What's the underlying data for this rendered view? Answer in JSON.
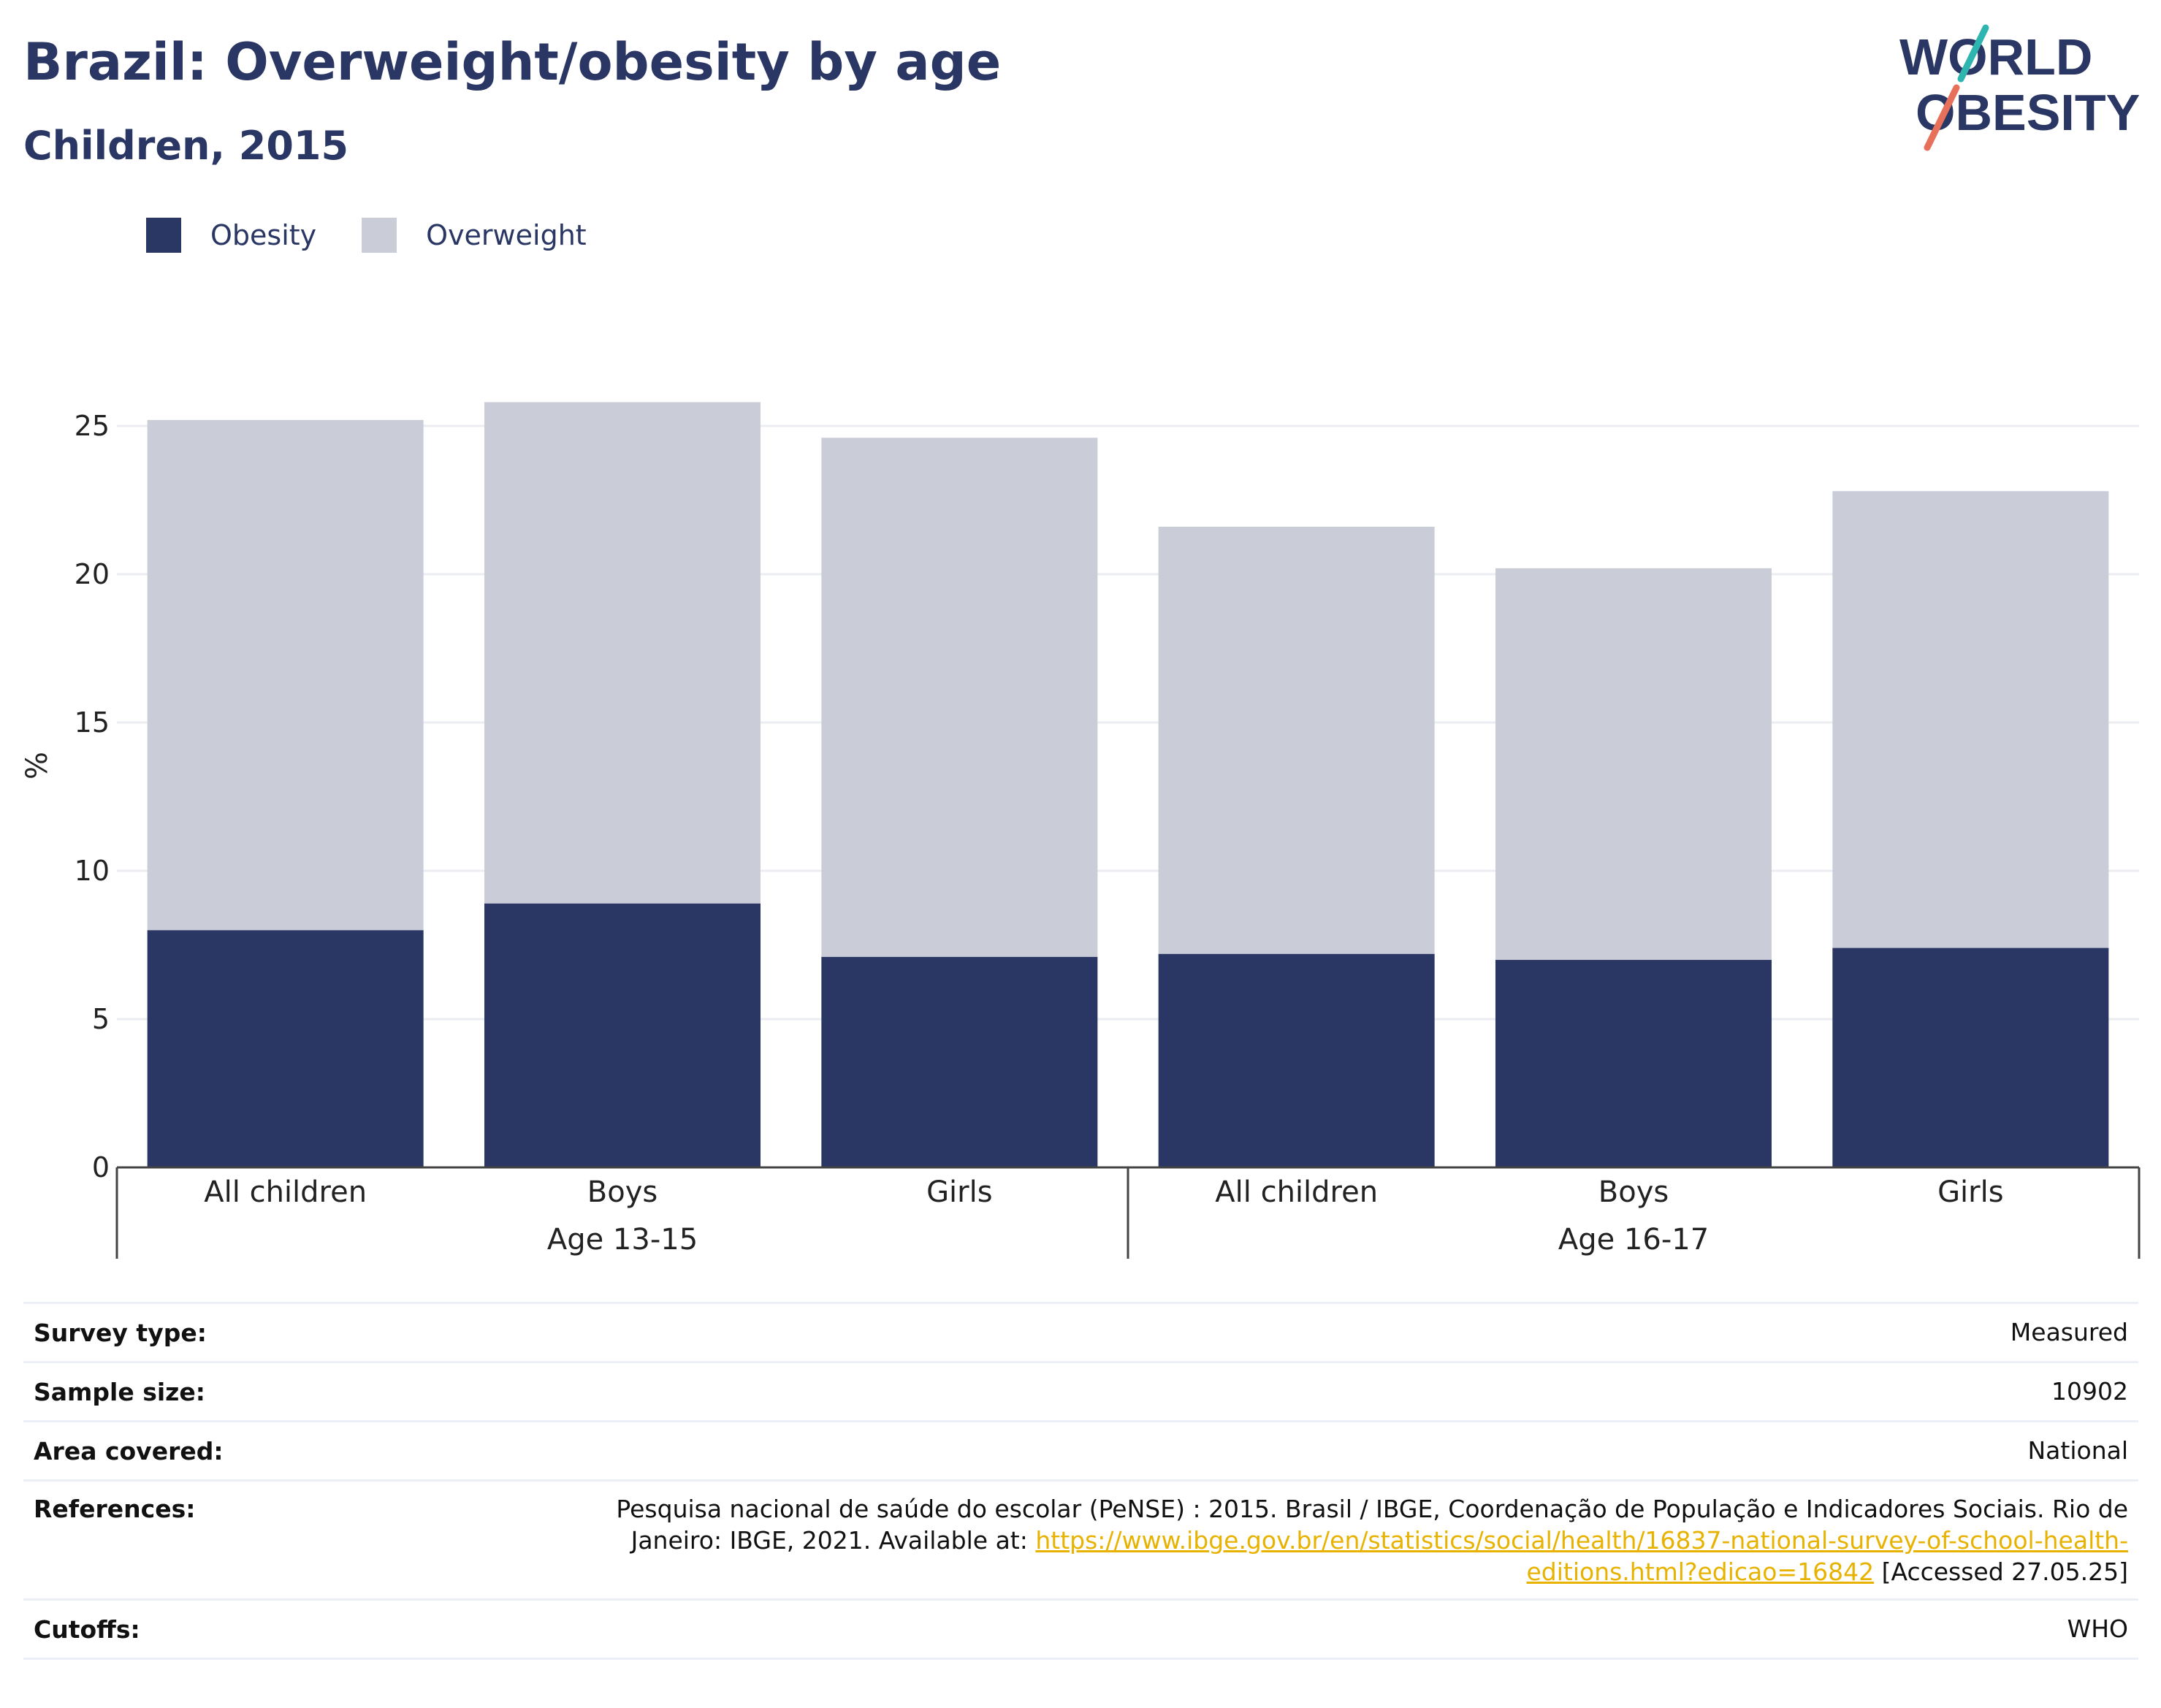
{
  "header": {
    "title": "Brazil: Overweight/obesity by age",
    "subtitle": "Children, 2015"
  },
  "logo": {
    "line1": "WORLD",
    "line2": "OBESITY"
  },
  "colors": {
    "obesity": "#2a3663",
    "overweight": "#cacdd8",
    "accent_teal": "#2fb5b0",
    "accent_coral": "#e7705b",
    "link": "#e8b200"
  },
  "legend": [
    {
      "label": "Obesity",
      "color": "#2a3663"
    },
    {
      "label": "Overweight",
      "color": "#cacdd8"
    }
  ],
  "chart_data": {
    "type": "bar",
    "stacked": true,
    "ylabel": "%",
    "ylim": [
      0,
      27
    ],
    "yticks": [
      0,
      5,
      10,
      15,
      20,
      25
    ],
    "grid": true,
    "legend_position": "top-left",
    "groups": [
      {
        "label": "Age 13-15",
        "categories": [
          "All children",
          "Boys",
          "Girls"
        ]
      },
      {
        "label": "Age 16-17",
        "categories": [
          "All children",
          "Boys",
          "Girls"
        ]
      }
    ],
    "series": [
      {
        "name": "Obesity",
        "values": [
          8.0,
          8.9,
          7.1,
          7.2,
          7.0,
          7.4
        ]
      },
      {
        "name": "Overweight",
        "values": [
          17.2,
          16.9,
          17.5,
          14.4,
          13.2,
          15.4
        ]
      }
    ]
  },
  "info": {
    "survey_type": {
      "label": "Survey type:",
      "value": "Measured"
    },
    "sample_size": {
      "label": "Sample size:",
      "value": "10902"
    },
    "area_covered": {
      "label": "Area covered:",
      "value": "National"
    },
    "references": {
      "label": "References:",
      "text_before": "Pesquisa nacional de saúde do escolar (PeNSE) : 2015. Brasil / IBGE, Coordenação de População e Indicadores Sociais. Rio de Janeiro: IBGE, 2021. Available at: ",
      "link": "https://www.ibge.gov.br/en/statistics/social/health/16837-national-survey-of-school-health-editions.html?edicao=16842",
      "text_after": " [Accessed 27.05.25]"
    },
    "cutoffs": {
      "label": "Cutoffs:",
      "value": "WHO"
    }
  }
}
